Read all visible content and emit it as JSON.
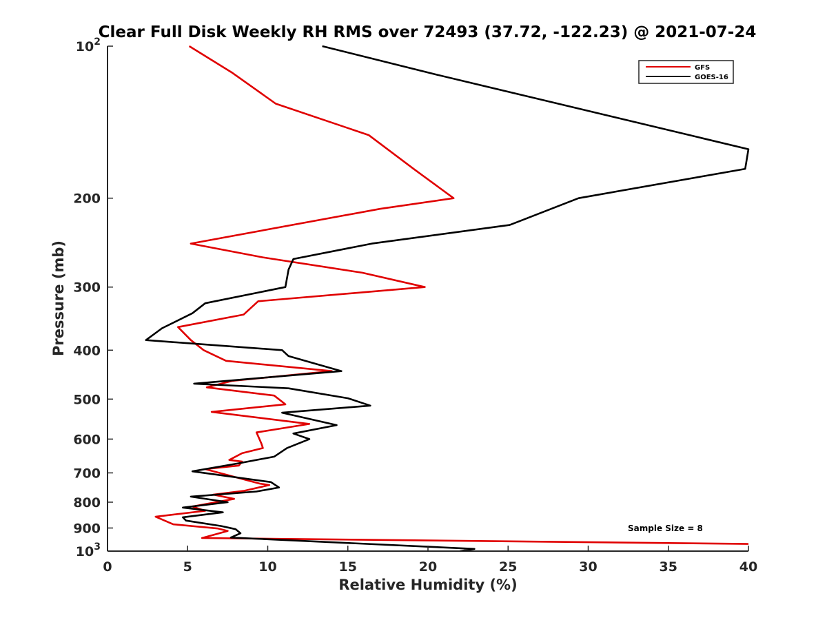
{
  "chart_data": {
    "type": "line",
    "title": "Clear Full Disk Weekly RH RMS over 72493 (37.72, -122.23) @ 2021-07-24",
    "xlabel": "Relative Humidity (%)",
    "ylabel": "Pressure (mb)",
    "xlim": [
      0,
      40
    ],
    "ylim": [
      100,
      1000
    ],
    "y_scale": "log",
    "y_reversed": true,
    "grid": false,
    "legend_position": "top-right",
    "x_ticks": [
      "0",
      "5",
      "10",
      "15",
      "20",
      "25",
      "30",
      "35",
      "40"
    ],
    "y_ticks": [
      {
        "value": 100,
        "base": "10",
        "exp": "2"
      },
      {
        "value": 200,
        "label": "200"
      },
      {
        "value": 300,
        "label": "300"
      },
      {
        "value": 400,
        "label": "400"
      },
      {
        "value": 500,
        "label": "500"
      },
      {
        "value": 600,
        "label": "600"
      },
      {
        "value": 700,
        "label": "700"
      },
      {
        "value": 800,
        "label": "800"
      },
      {
        "value": 900,
        "label": "900"
      },
      {
        "value": 1000,
        "base": "10",
        "exp": "3"
      }
    ],
    "annotation": "Sample Size = 8",
    "series": [
      {
        "name": "GFS",
        "color": "#e00000",
        "points": [
          [
            5.1,
            100
          ],
          [
            7.8,
            113
          ],
          [
            10.5,
            130
          ],
          [
            16.3,
            150
          ],
          [
            19.1,
            175
          ],
          [
            21.6,
            200
          ],
          [
            17.0,
            210
          ],
          [
            5.2,
            246
          ],
          [
            9.7,
            262
          ],
          [
            15.9,
            281
          ],
          [
            19.8,
            300
          ],
          [
            9.4,
            320
          ],
          [
            8.5,
            340
          ],
          [
            4.4,
            360
          ],
          [
            5.2,
            382
          ],
          [
            6.0,
            400
          ],
          [
            7.4,
            420
          ],
          [
            14.0,
            440
          ],
          [
            7.8,
            460
          ],
          [
            6.2,
            474
          ],
          [
            10.4,
            492
          ],
          [
            11.1,
            512
          ],
          [
            6.5,
            530
          ],
          [
            12.6,
            560
          ],
          [
            9.3,
            582
          ],
          [
            9.6,
            612
          ],
          [
            9.7,
            625
          ],
          [
            8.4,
            640
          ],
          [
            7.6,
            660
          ],
          [
            8.4,
            665
          ],
          [
            8.2,
            677
          ],
          [
            6.1,
            688
          ],
          [
            9.5,
            735
          ],
          [
            10.1,
            740
          ],
          [
            8.5,
            760
          ],
          [
            6.6,
            773
          ],
          [
            7.9,
            788
          ],
          [
            5.3,
            816
          ],
          [
            6.1,
            832
          ],
          [
            3.0,
            855
          ],
          [
            4.1,
            885
          ],
          [
            6.9,
            902
          ],
          [
            7.5,
            912
          ],
          [
            5.9,
            942
          ],
          [
            40.0,
            968
          ]
        ]
      },
      {
        "name": "GOES-16",
        "color": "#000000",
        "points": [
          [
            13.4,
            100
          ],
          [
            20.6,
            114
          ],
          [
            40.0,
            160
          ],
          [
            39.8,
            175
          ],
          [
            29.4,
            200
          ],
          [
            25.1,
            226
          ],
          [
            16.5,
            246
          ],
          [
            11.6,
            264
          ],
          [
            11.3,
            277
          ],
          [
            11.1,
            300
          ],
          [
            6.1,
            323
          ],
          [
            5.3,
            338
          ],
          [
            3.4,
            362
          ],
          [
            2.4,
            382
          ],
          [
            10.9,
            400
          ],
          [
            11.3,
            411
          ],
          [
            14.6,
            440
          ],
          [
            5.4,
            466
          ],
          [
            11.3,
            476
          ],
          [
            15.0,
            498
          ],
          [
            16.4,
            515
          ],
          [
            10.9,
            532
          ],
          [
            14.3,
            563
          ],
          [
            11.6,
            585
          ],
          [
            12.6,
            600
          ],
          [
            11.2,
            625
          ],
          [
            10.4,
            650
          ],
          [
            8.2,
            670
          ],
          [
            5.3,
            695
          ],
          [
            10.2,
            730
          ],
          [
            10.7,
            748
          ],
          [
            9.3,
            762
          ],
          [
            5.2,
            780
          ],
          [
            7.5,
            800
          ],
          [
            4.7,
            820
          ],
          [
            7.2,
            838
          ],
          [
            4.7,
            857
          ],
          [
            4.9,
            870
          ],
          [
            7.1,
            892
          ],
          [
            8.0,
            905
          ],
          [
            8.3,
            922
          ],
          [
            7.7,
            940
          ],
          [
            22.9,
            990
          ],
          [
            22.0,
            1000
          ]
        ]
      }
    ]
  }
}
